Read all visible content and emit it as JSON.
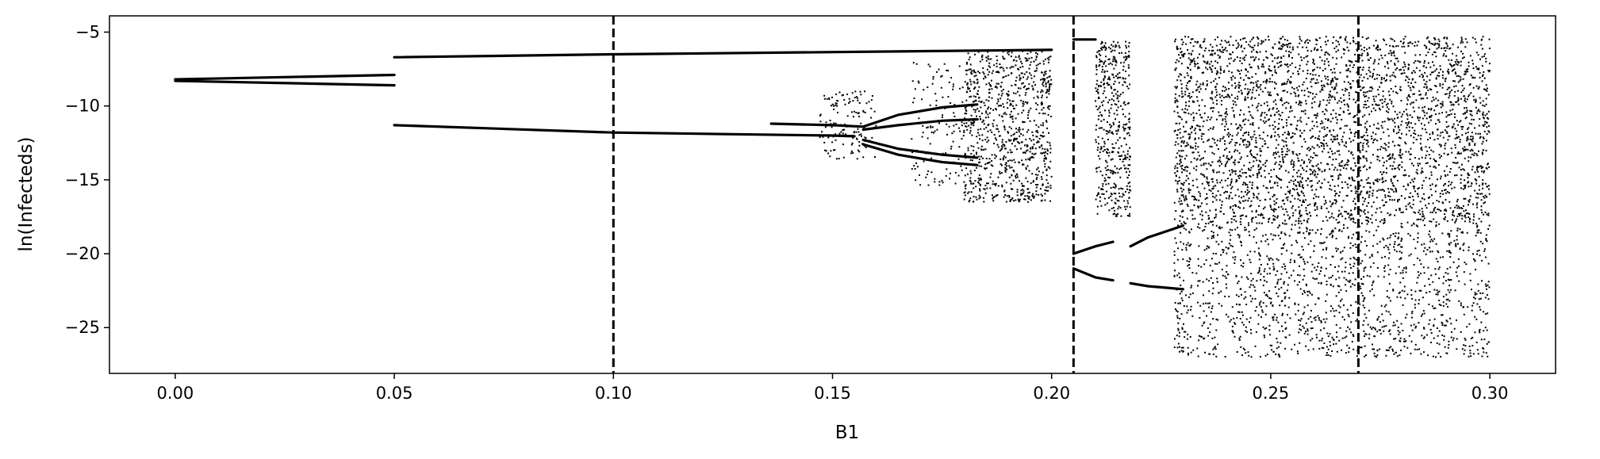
{
  "chart_data": {
    "type": "scatter",
    "title": "",
    "xlabel": "B1",
    "ylabel": "ln(Infecteds)",
    "xlim": [
      -0.015,
      0.315
    ],
    "ylim": [
      -28.1,
      -3.9
    ],
    "x_ticks": [
      0.0,
      0.05,
      0.1,
      0.15,
      0.2,
      0.25,
      0.3
    ],
    "x_tick_labels": [
      "0.00",
      "0.05",
      "0.10",
      "0.15",
      "0.20",
      "0.25",
      "0.30"
    ],
    "y_ticks": [
      -5,
      -10,
      -15,
      -20,
      -25
    ],
    "y_tick_labels": [
      "−5",
      "−10",
      "−15",
      "−20",
      "−25"
    ],
    "grid": false,
    "legend": "none",
    "vlines": [
      {
        "x": 0.1,
        "style": "dashed"
      },
      {
        "x": 0.205,
        "style": "dashed"
      },
      {
        "x": 0.27,
        "style": "dashed"
      }
    ],
    "marker_color": "#000000",
    "series": [
      {
        "kind": "branch",
        "values": [
          [
            0.0,
            -8.2
          ],
          [
            0.05,
            -7.9
          ]
        ]
      },
      {
        "kind": "branch",
        "values": [
          [
            0.0,
            -8.3
          ],
          [
            0.05,
            -8.6
          ]
        ]
      },
      {
        "kind": "branch",
        "values": [
          [
            0.05,
            -6.7
          ],
          [
            0.1,
            -6.5
          ],
          [
            0.15,
            -6.35
          ],
          [
            0.2,
            -6.2
          ]
        ]
      },
      {
        "kind": "branch",
        "values": [
          [
            0.05,
            -11.3
          ],
          [
            0.1,
            -11.8
          ],
          [
            0.15,
            -12.0
          ],
          [
            0.155,
            -12.05
          ]
        ]
      },
      {
        "kind": "branch",
        "values": [
          [
            0.136,
            -11.2
          ],
          [
            0.15,
            -11.3
          ],
          [
            0.157,
            -11.4
          ],
          [
            0.165,
            -10.6
          ],
          [
            0.175,
            -10.1
          ],
          [
            0.183,
            -9.9
          ]
        ]
      },
      {
        "kind": "branch",
        "values": [
          [
            0.157,
            -11.6
          ],
          [
            0.165,
            -11.3
          ],
          [
            0.175,
            -11.0
          ],
          [
            0.183,
            -10.9
          ]
        ]
      },
      {
        "kind": "branch",
        "values": [
          [
            0.157,
            -12.3
          ],
          [
            0.165,
            -12.9
          ],
          [
            0.175,
            -13.3
          ],
          [
            0.183,
            -13.5
          ]
        ]
      },
      {
        "kind": "branch",
        "values": [
          [
            0.157,
            -12.6
          ],
          [
            0.165,
            -13.3
          ],
          [
            0.175,
            -13.8
          ],
          [
            0.183,
            -14.0
          ]
        ]
      },
      {
        "kind": "branch",
        "values": [
          [
            0.205,
            -5.5
          ],
          [
            0.21,
            -5.5
          ]
        ]
      },
      {
        "kind": "branch",
        "values": [
          [
            0.205,
            -20.0
          ],
          [
            0.21,
            -19.5
          ],
          [
            0.214,
            -19.2
          ]
        ]
      },
      {
        "kind": "branch",
        "values": [
          [
            0.205,
            -21.0
          ],
          [
            0.21,
            -21.6
          ],
          [
            0.214,
            -21.8
          ]
        ]
      },
      {
        "kind": "branch",
        "values": [
          [
            0.218,
            -19.5
          ],
          [
            0.222,
            -18.9
          ],
          [
            0.226,
            -18.5
          ],
          [
            0.23,
            -18.1
          ]
        ]
      },
      {
        "kind": "branch",
        "values": [
          [
            0.218,
            -22.0
          ],
          [
            0.222,
            -22.2
          ],
          [
            0.226,
            -22.3
          ],
          [
            0.23,
            -22.4
          ]
        ]
      },
      {
        "kind": "scatter_region",
        "values": [
          {
            "x": [
              0.147,
              0.16
            ],
            "y": [
              -13.6,
              -9.0
            ],
            "count": 140
          },
          {
            "x": [
              0.168,
              0.18
            ],
            "y": [
              -15.4,
              -7.0
            ],
            "count": 120
          },
          {
            "x": [
              0.18,
              0.2
            ],
            "y": [
              -16.5,
              -6.3
            ],
            "count": 900
          },
          {
            "x": [
              0.21,
              0.218
            ],
            "y": [
              -17.5,
              -5.6
            ],
            "count": 450
          },
          {
            "x": [
              0.228,
              0.3
            ],
            "y": [
              -18.0,
              -5.3
            ],
            "count": 3500
          },
          {
            "x": [
              0.228,
              0.3
            ],
            "y": [
              -27.0,
              -18.0
            ],
            "count": 1400
          }
        ]
      }
    ]
  }
}
